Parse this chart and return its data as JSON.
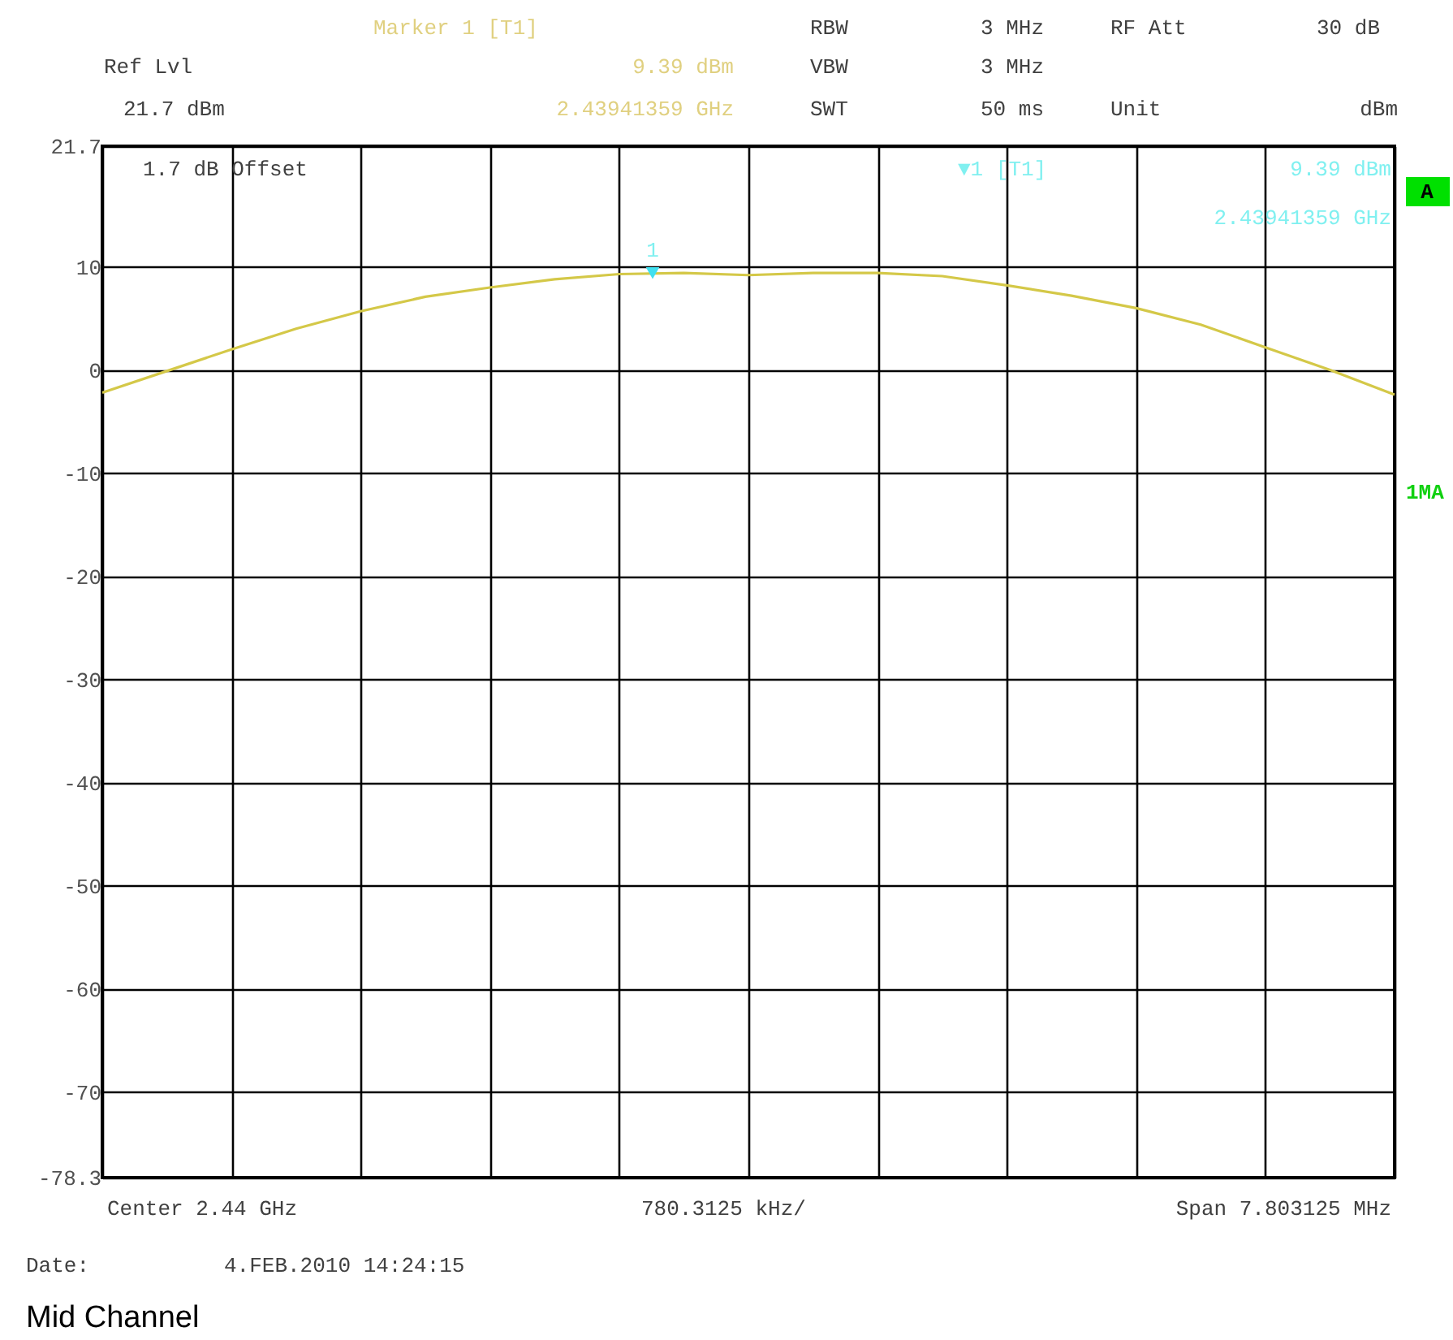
{
  "chart_data": {
    "type": "line",
    "categories": [
      null,
      null,
      null,
      null,
      null,
      null,
      null,
      null,
      null,
      null,
      null,
      null,
      null,
      null,
      null,
      null,
      null,
      null,
      null,
      null,
      null
    ],
    "ylim": [
      -78.3,
      21.7
    ],
    "yticks": [
      21.7,
      10,
      0,
      -10,
      -20,
      -30,
      -40,
      -50,
      -60,
      -70,
      -78.3
    ],
    "tick_labels": "y",
    "grid": true,
    "series": [
      {
        "color": "#d4c848",
        "line_style": "solid",
        "values": [
          -2.2,
          -0.1,
          2.0,
          4.0,
          5.7,
          7.1,
          8.0,
          8.8,
          9.3,
          9.4,
          9.2,
          9.4,
          9.4,
          9.1,
          8.2,
          7.2,
          6.0,
          4.4,
          2.2,
          0.0,
          -2.4
        ]
      }
    ],
    "annotations": [
      "Marker 1 [T1]",
      "9.39 dBm",
      "2.43941359 GHz",
      "Ref Lvl",
      "21.7 dBm",
      "RBW",
      "3 MHz",
      "RF Att",
      "30 dB",
      "VBW",
      "3 MHz",
      "SWT",
      "50 ms",
      "Unit",
      "dBm",
      "1.7 dB Offset",
      "▼1 [T1]",
      "9.39 dBm",
      "2.43941359 GHz",
      "A",
      "1MA",
      "Center 2.44 GHz",
      "780.3125 kHz/",
      "Span 7.803125 MHz",
      "Date:",
      "4.FEB.2010  14:24:15",
      "Mid Channel",
      {
        "text": "1",
        "y": 9.39
      }
    ]
  }
}
